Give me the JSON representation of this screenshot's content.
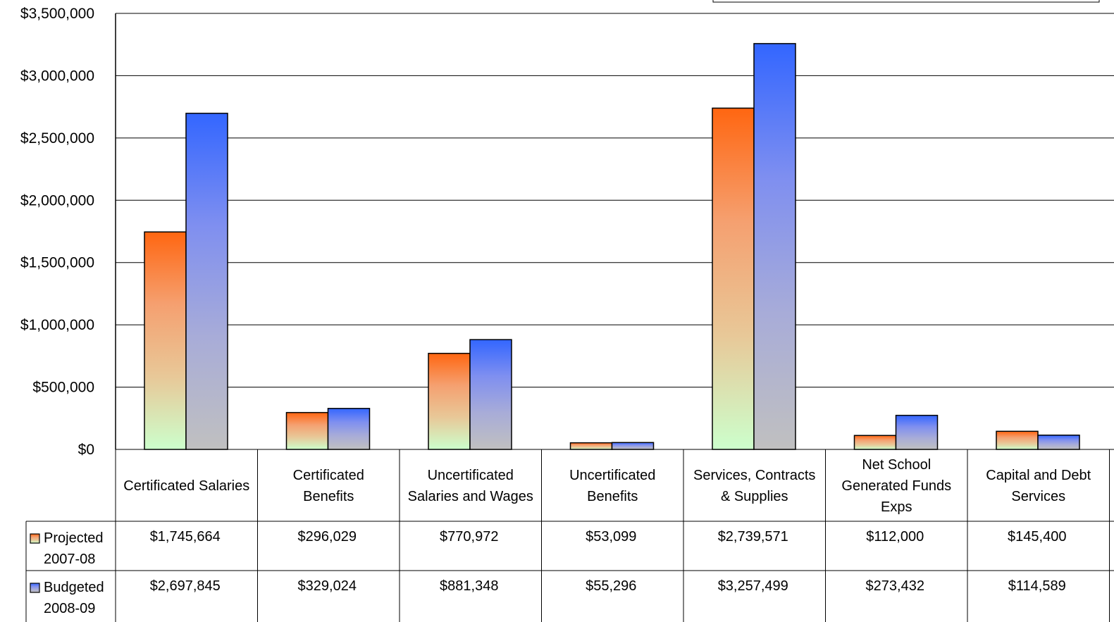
{
  "chart_data": {
    "type": "bar",
    "categories": [
      [
        "Certificated Salaries"
      ],
      [
        "Certificated",
        "Benefits"
      ],
      [
        "Uncertificated",
        "Salaries and Wages"
      ],
      [
        "Uncertificated",
        "Benefits"
      ],
      [
        "Services, Contracts",
        "& Supplies"
      ],
      [
        "Net School",
        "Generated Funds",
        "Exps"
      ],
      [
        "Capital and Debt",
        "Services"
      ]
    ],
    "series": [
      {
        "name": [
          "Projected",
          "2007-08"
        ],
        "values": [
          1745664,
          296029,
          770972,
          53099,
          2739571,
          112000,
          145400
        ],
        "labels": [
          "$1,745,664",
          "$296,029",
          "$770,972",
          "$53,099",
          "$2,739,571",
          "$112,000",
          "$145,400"
        ],
        "gradient": [
          "#ff6611",
          "#f5a070",
          "#e8c898",
          "#ccffcc"
        ]
      },
      {
        "name": [
          "Budgeted",
          "2008-09"
        ],
        "values": [
          2697845,
          329024,
          881348,
          55296,
          3257499,
          273432,
          114589
        ],
        "labels": [
          "$2,697,845",
          "$329,024",
          "$881,348",
          "$55,296",
          "$3,257,499",
          "$273,432",
          "$114,589"
        ],
        "gradient": [
          "#3366ff",
          "#7f8ff0",
          "#a8acd8",
          "#c0c0c0"
        ]
      }
    ],
    "yticks": [
      "$0",
      "$500,000",
      "$1,000,000",
      "$1,500,000",
      "$2,000,000",
      "$2,500,000",
      "$3,000,000",
      "$3,500,000"
    ],
    "ylim": [
      0,
      3500000
    ],
    "grid": true,
    "legend": "data-table"
  }
}
